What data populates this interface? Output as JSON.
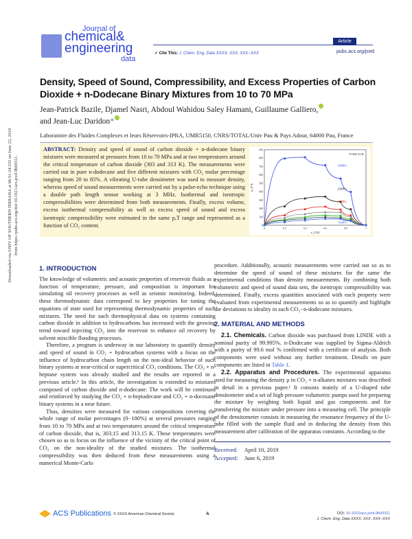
{
  "header": {
    "journal_line1": "Journal of",
    "journal_line2": "chemical&",
    "journal_line3": "engineering",
    "journal_line4": "data",
    "article_badge": "Article",
    "cite_label": "Cite This:",
    "cite_ref": "J. Chem. Eng. Data XXXX, XXX, XXX−XXX",
    "url": "pubs.acs.org/jced"
  },
  "sidebar": {
    "line1": "Downloaded via UNIV OF SOUTHERN INDIANA at 06:51:34:335 on June 22, 2019",
    "line2": "from https://pubs.acs.org/doi/10.1021/acs.jced.9b00311."
  },
  "title": "Density, Speed of Sound, Compressibility, and Excess Properties of Carbon Dioxide + n-Dodecane Binary Mixtures from 10 to 70 MPa",
  "authors": [
    "Jean-Patrick Bazile, Djamel Nasri, Abdoul Wahidou Saley Hamani, Guillaume Galliero,",
    "and Jean-Luc Daridon",
    "*"
  ],
  "affiliation": "Laboratoire des Fluides Complexes et leurs Réservoirs-IPRA, UMR5150, CNRS/TOTAL/Univ Pau & Pays Adour, 64000 Pau, France",
  "abstract": {
    "label": "ABSTRACT:",
    "text": "Density and speed of sound of carbon dioxide + n-dodecane binary mixtures were measured at pressures from 10 to 70 MPa and at two temperatures around the critical temperature of carbon dioxide (303 and 313 K). The measurements were carried out in pure n-dodecane and five different mixtures with CO₂ molar percentage ranging from 20 to 85%. A vibrating U-tube densimeter was used to measure density, whereas speed of sound measurements were carried out by a pulse-echo technique using a double path length sensor working at 3 MHz. Isothermal and isentropic compressibilities were determined from both measurements. Finally, excess volume, excess isothermal compressibility as well as excess speed of sound and excess isentropic compressibility were estimated in the same p,T range and represented as a function of CO₂ content."
  },
  "chart_data": {
    "type": "line",
    "annotation": "T=303.15 K",
    "xlabel": "x_CO2",
    "ylabel": "κ_T^E",
    "xlim": [
      0,
      1
    ],
    "ylim": [
      0,
      900
    ],
    "xticks": [
      "0",
      "0.2",
      "0.4",
      "0.6",
      "0.8",
      "1"
    ],
    "yticks": [
      "0",
      "100",
      "200",
      "300",
      "400",
      "500",
      "600",
      "700",
      "800",
      "900"
    ],
    "x": [
      0,
      0.2,
      0.4,
      0.6,
      0.75,
      0.85,
      1
    ],
    "series": [
      {
        "name": "10MPa",
        "color": "#2a3fe0",
        "values": [
          0,
          795,
          810,
          715,
          556,
          397,
          0
        ]
      },
      {
        "name": "20MPa",
        "color": "#222222",
        "values": [
          0,
          224,
          318,
          341,
          279,
          190,
          0
        ]
      },
      {
        "name": "30MPa",
        "color": "#e02020",
        "values": [
          0,
          117,
          190,
          221,
          187,
          117,
          0
        ]
      },
      {
        "color": "#888888",
        "values": [
          0,
          84,
          131,
          154,
          154,
          100,
          0
        ]
      },
      {
        "color": "#20b020",
        "values": [
          0,
          61,
          95,
          117,
          112,
          75,
          0
        ]
      },
      {
        "color": "#444444",
        "values": [
          0,
          53,
          75,
          95,
          89,
          61,
          0
        ]
      },
      {
        "name": "70MPa",
        "color": "#3a6af0",
        "values": [
          0,
          34,
          56,
          75,
          75,
          50,
          0
        ]
      }
    ]
  },
  "intro": {
    "heading": "1. INTRODUCTION",
    "p1": "The knowledge of volumetric and acoustic properties of reservoir fluids as a function of temperature, pressure, and composition is important for simulating oil recovery processes as well as seismic monitoring. Indeed, these thermodynamic data correspond to key properties for tuning the equations of state used for representing thermodynamic properties of such mixtures. The need for such thermophysical data on systems containing carbon dioxide in addition to hydrocarbons has increased with the growing trend toward injecting CO₂ into the reservoir to enhance oil recovery by solvent miscible flooding processes.",
    "p2": "Therefore, a program is underway in our laboratory to quantify density and speed of sound in CO₂ + hydrocarbon systems with a focus on the influence of hydrocarbon chain length on the non-ideal behavior of such binary systems at near-critical or supercritical CO₂ conditions. The CO₂ + n-heptane system was already studied and the results are reported in a previous article.¹ In this article, the investigation is extended to mixtures composed of carbon dioxide and n-dodecane. The work will be continued and reinforced by studying the CO₂ + n-heptadecane and CO₂ + n-docosane binary systems in a near future.",
    "p3": "Thus, densities were measured for various compositions covering the whole range of molar percentages (0−100%) at several pressures ranging from 10 to 70 MPa and at two temperatures around the critical temperature of carbon dioxide, that is, 303.15 and 313.15 K. These temperatures were chosen so as to focus on the influence of the vicinity of the critical point of CO₂ on the non-ideality of the studied mixtures. The isothermal compressibility was then deduced from these measurements using a numerical Monte-Carlo",
    "p4": "procedure. Additionally, acoustic measurements were carried out so as to determine the speed of sound of these mixtures for the same the experimental conditions than density measurements. By combining both volumetric and speed of sound data sets, the isentropic compressibility was determined. Finally, excess quantities associated with each property were evaluated from experimental measurements so as to quantify and highlight the deviations to ideality in such CO₂−n-dodecane mixtures."
  },
  "methods": {
    "heading": "2. MATERIAL AND METHODS",
    "chem_heading": "2.1. Chemicals.",
    "chem_text": "Carbon dioxide was purchased from LINDE with a nominal purity of 99.995%. n-Dodecane was supplied by Sigma-Aldrich with a purity of 99.6 mol % confirmed with a certificate of analysis. Both components were used without any further treatment. Details on pure components are listed in",
    "table_link": "Table 1",
    "app_heading": "2.2. Apparatus and Procedures.",
    "app_text": "The experimental apparatus used for measuring the density ρ in CO₂ + n-alkanes mixtures was described in detail in a previous paper.¹ It consists mainly of a U-shaped tube densitometer and a set of high pressure volumetric pumps used for preparing the mixture by weighing both liquid and gas components and for transferring the mixture under pressure into a measuring cell. The principle of the densitometer consists in measuring the resonance frequency of the U-tube filled with the sample fluid and in deducing the density from this measurement after calibration of the apparatus constants. According to the"
  },
  "dates": {
    "received_label": "Received:",
    "received": "April 10, 2019",
    "accepted_label": "Accepted:",
    "accepted": "June 6, 2019"
  },
  "footer": {
    "publisher": "ACS Publications",
    "copyright": "© XXXX American Chemical Society",
    "page": "A",
    "doi_label": "DOI:",
    "doi": "10.1021/acs.jced.9b00311",
    "ref": "J. Chem. Eng. Data XXXX, XXX, XXX−XXX"
  }
}
